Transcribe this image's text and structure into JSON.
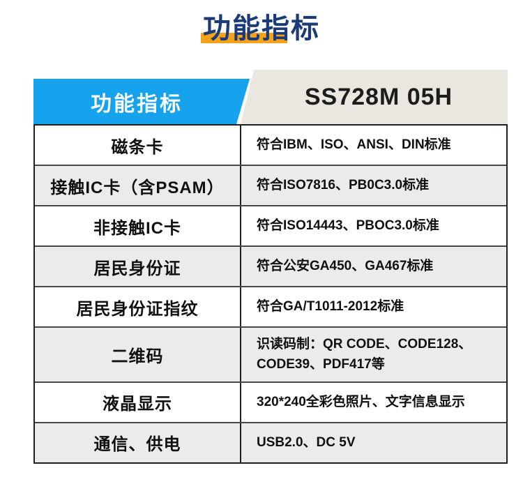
{
  "title": {
    "text": "功能指标"
  },
  "table": {
    "header": {
      "left": "功能指标",
      "right": "SS728M 05H"
    },
    "rows": [
      {
        "label": "磁条卡",
        "value": "符合IBM、ISO、ANSI、DIN标准"
      },
      {
        "label": "接触IC卡（含PSAM）",
        "value": "符合ISO7816、PB0C3.0标准"
      },
      {
        "label": "非接触IC卡",
        "value": "符合ISO14443、PBOC3.0标准"
      },
      {
        "label": "居民身份证",
        "value": "符合公安GA450、GA467标准"
      },
      {
        "label": "居民身份证指纹",
        "value": "符合GA/T1011-2012标准"
      },
      {
        "label": "二维码",
        "value": "识读码制：QR CODE、CODE128、CODE39、PDF417等"
      },
      {
        "label": "液晶显示",
        "value": "320*240全彩色照片、文字信息显示"
      },
      {
        "label": "通信、供电",
        "value": "USB2.0、DC 5V"
      }
    ]
  },
  "colors": {
    "accent_blue": "#16a2ec",
    "beige": "#eae6e0",
    "navy": "#1b3a78",
    "orange": "#f5a21b",
    "alt_row": "#ebebe9",
    "border": "#1f1f1f"
  }
}
